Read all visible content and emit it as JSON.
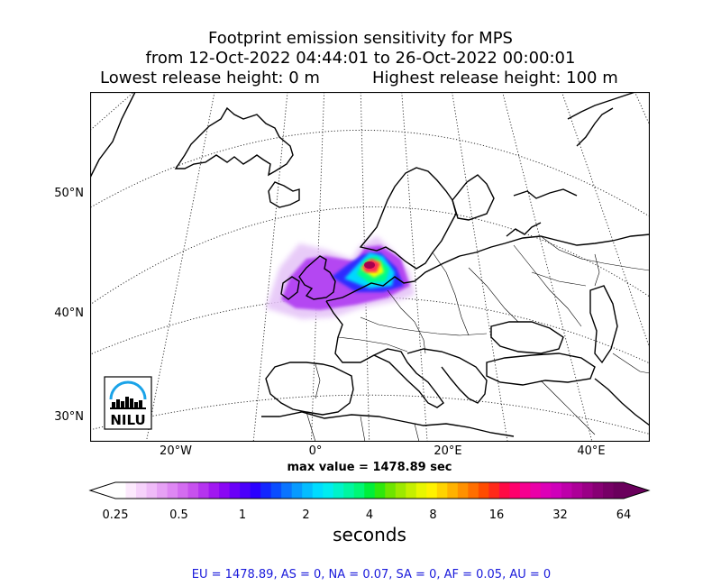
{
  "title": {
    "line1": "Footprint emission sensitivity for MPS",
    "line2": "from 12-Oct-2022 04:44:01 to 26-Oct-2022 00:00:01",
    "line3_left": "Lowest release height: 0 m",
    "line3_right": "Highest release height: 100 m"
  },
  "map": {
    "lat_labels": [
      "50°N",
      "40°N",
      "30°N"
    ],
    "lon_labels": [
      "20°W",
      "0°",
      "20°E",
      "40°E"
    ],
    "logo_text": "NILU",
    "coast_color": "#000000",
    "plume_colors": [
      "#d7a6f4",
      "#a300ff",
      "#2f2bff",
      "#00d8ff",
      "#00ff84",
      "#f4ff00",
      "#ff2a58",
      "#a7004d"
    ]
  },
  "max_value": "max value = 1478.89 sec",
  "colorbar": {
    "ticks": [
      "0.25",
      "0.5",
      "1",
      "2",
      "4",
      "8",
      "16",
      "32",
      "64"
    ],
    "label": "seconds",
    "colors": [
      "#ffffff",
      "#fce9fd",
      "#f6d2fb",
      "#efbbf8",
      "#e6a1f5",
      "#de87f3",
      "#d36cf0",
      "#c751ee",
      "#b534ef",
      "#a118f1",
      "#8a07f4",
      "#6a00f8",
      "#4b00fb",
      "#2b00ff",
      "#1326ff",
      "#0a4dff",
      "#0a74ff",
      "#079aff",
      "#04bdff",
      "#00dcff",
      "#00ecf0",
      "#00f3c9",
      "#00f6a0",
      "#00f775",
      "#00ef3a",
      "#2fe80d",
      "#6ee500",
      "#9de900",
      "#c5ef00",
      "#e8f600",
      "#fff200",
      "#ffd300",
      "#ffb200",
      "#ff9100",
      "#ff6f00",
      "#ff4c00",
      "#ff2a1a",
      "#ff0a45",
      "#ff006c",
      "#f60090",
      "#ea00a8",
      "#dd00b7",
      "#cf00ba",
      "#be00aa",
      "#ad0098",
      "#9a0086",
      "#870074",
      "#760066",
      "#6a005c"
    ]
  },
  "stats_line": "EU = 1478.89,  AS = 0,  NA = 0.07,  SA = 0,  AF = 0.05,  AU = 0"
}
